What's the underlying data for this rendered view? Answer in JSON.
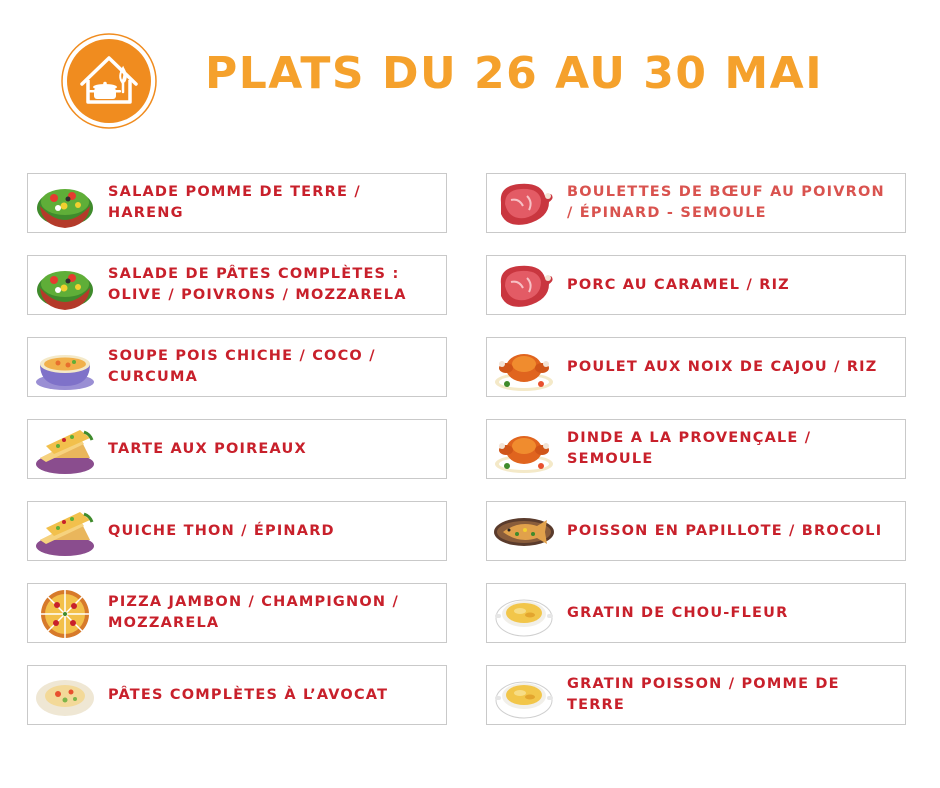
{
  "title": "PLATS DU 26 AU 30 MAI",
  "colors": {
    "title": "#f5a12c",
    "logo_bg": "#f08c1f",
    "item_text": "#c8202b"
  },
  "left_items": [
    {
      "label": "SALADE POMME DE TERRE / HARENG",
      "icon": "salad-bowl-icon"
    },
    {
      "label": "SALADE DE PÂTES COMPLÈTES : OLIVE / POIVRONS / MOZZARELA",
      "icon": "salad-bowl-icon"
    },
    {
      "label": "SOUPE POIS CHICHE / COCO / CURCUMA",
      "icon": "soup-bowl-icon"
    },
    {
      "label": "TARTE AUX POIREAUX",
      "icon": "quiche-slice-icon"
    },
    {
      "label": "QUICHE THON / ÉPINARD",
      "icon": "quiche-slice-icon"
    },
    {
      "label": "PIZZA JAMBON / CHAMPIGNON / MOZZARELA",
      "icon": "pizza-icon"
    },
    {
      "label": "PÂTES COMPLÈTES À L’AVOCAT",
      "icon": "pasta-plate-icon"
    }
  ],
  "right_items": [
    {
      "label": "BOULETTES DE BŒUF AU POIVRON / ÉPINARD - SEMOULE",
      "icon": "meat-steak-icon"
    },
    {
      "label": "PORC AU CARAMEL / RIZ",
      "icon": "meat-steak-icon"
    },
    {
      "label": "POULET AUX NOIX DE CAJOU / RIZ",
      "icon": "roast-chicken-icon"
    },
    {
      "label": "DINDE A LA PROVENÇALE / SEMOULE",
      "icon": "roast-chicken-icon"
    },
    {
      "label": "POISSON EN PAPILLOTE / BROCOLI",
      "icon": "fish-plate-icon"
    },
    {
      "label": "GRATIN DE CHOU-FLEUR",
      "icon": "gratin-dish-icon"
    },
    {
      "label": "GRATIN POISSON / POMME DE TERRE",
      "icon": "gratin-dish-icon"
    }
  ]
}
